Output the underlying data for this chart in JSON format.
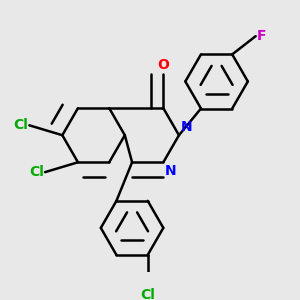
{
  "bg_color": "#e8e8e8",
  "bond_color": "#000000",
  "bond_width": 1.8,
  "dbo": 0.055,
  "atom_colors": {
    "Cl": "#00aa00",
    "O": "#ff0000",
    "N": "#0000ff",
    "F": "#cc00cc"
  },
  "font_size": 10
}
